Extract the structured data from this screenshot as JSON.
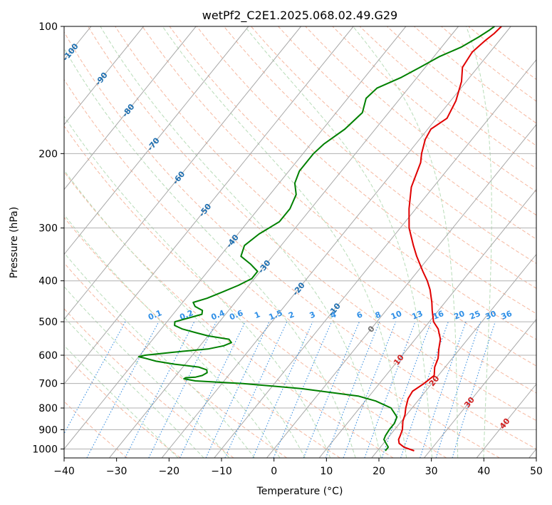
{
  "chart_data": {
    "type": "line",
    "title": "wetPf2_C2E1.2025.068.02.49.G29",
    "xlabel": "Temperature (°C)",
    "ylabel": "Pressure (hPa)",
    "xlim": [
      -40,
      50
    ],
    "ylim": [
      1050,
      100
    ],
    "y_scale": "log",
    "x_ticks": [
      -40,
      -30,
      -20,
      -10,
      0,
      10,
      20,
      30,
      40,
      50
    ],
    "x_tick_labels": [
      "−40",
      "−30",
      "−20",
      "−10",
      "0",
      "10",
      "20",
      "30",
      "40",
      "50"
    ],
    "y_ticks": [
      100,
      200,
      300,
      400,
      500,
      600,
      700,
      800,
      900,
      1000
    ],
    "y_tick_labels": [
      "100",
      "200",
      "300",
      "400",
      "500",
      "600",
      "700",
      "800",
      "900",
      "1000"
    ],
    "grid": true,
    "isotherm_labels": [
      "-100",
      "-90",
      "-80",
      "-70",
      "-60",
      "-50",
      "-40",
      "-30",
      "-20",
      "-10",
      "0",
      "10",
      "20",
      "30",
      "40"
    ],
    "isotherm_label_values": [
      -100,
      -90,
      -80,
      -70,
      -60,
      -50,
      -40,
      -30,
      -20,
      -10,
      0,
      10,
      20,
      30,
      40
    ],
    "isotherm_label_pressures": [
      115,
      133,
      158,
      190,
      228,
      272,
      322,
      370,
      418,
      468,
      520,
      615,
      690,
      775,
      870
    ],
    "mixing_ratio_labels": [
      "0.1",
      "0.2",
      "0.4",
      "0.6",
      "1",
      "1.5",
      "2",
      "3",
      "4",
      "6",
      "8",
      "10",
      "13",
      "16",
      "20",
      "25",
      "30",
      "36"
    ],
    "mixing_ratio_label_x": [
      -22.5,
      -16.5,
      -10.5,
      -7.0,
      -3.0,
      0.5,
      3.5,
      7.5,
      11.5,
      16.5,
      20.0,
      23.5,
      27.5,
      31.5,
      35.5,
      38.5,
      41.5,
      44.5
    ],
    "colors": {
      "temperature": "#e00000",
      "dewpoint": "#008000",
      "isobar": "#b0b0b0",
      "isotherm": "#a8a8a8",
      "dry_adiabat": "#f6b8a0",
      "moist_adiabat": "#b8dcb8",
      "mixing_ratio": "#3a8fe0",
      "label_cold": "#1f6fb0",
      "label_zero": "#707070",
      "label_warm": "#d02020",
      "mixing_label": "#2f8fe6",
      "frame": "#000000"
    },
    "series": [
      {
        "key": "temperature",
        "pressure": [
          1010,
          990,
          970,
          950,
          930,
          900,
          860,
          830,
          800,
          760,
          730,
          700,
          670,
          640,
          610,
          580,
          550,
          520,
          500,
          470,
          450,
          420,
          400,
          380,
          350,
          330,
          300,
          270,
          240,
          210,
          200,
          185,
          175,
          165,
          150,
          135,
          125,
          115,
          108,
          104,
          100
        ],
        "values": [
          27.0,
          24.5,
          23.0,
          22.3,
          22.0,
          21.5,
          20.3,
          19.7,
          18.8,
          17.8,
          17.5,
          18.5,
          19.2,
          18.0,
          17.3,
          16.0,
          14.8,
          12.8,
          10.8,
          8.8,
          7.5,
          5.2,
          3.3,
          1.0,
          -2.5,
          -4.8,
          -8.3,
          -11.3,
          -14.2,
          -16.2,
          -17.4,
          -18.9,
          -19.4,
          -18.0,
          -19.0,
          -20.9,
          -22.9,
          -23.4,
          -22.7,
          -22.1,
          -21.8
        ]
      },
      {
        "key": "dewpoint",
        "pressure": [
          1010,
          990,
          970,
          950,
          930,
          900,
          870,
          840,
          800,
          770,
          750,
          720,
          700,
          690,
          682,
          678,
          676,
          670,
          660,
          650,
          640,
          630,
          620,
          610,
          605,
          600,
          590,
          580,
          570,
          560,
          550,
          540,
          530,
          520,
          510,
          500,
          490,
          480,
          470,
          460,
          450,
          440,
          425,
          410,
          395,
          380,
          365,
          350,
          330,
          310,
          290,
          270,
          250,
          235,
          220,
          210,
          200,
          190,
          175,
          160,
          148,
          140,
          132,
          125,
          118,
          112,
          106,
          102,
          100
        ],
        "values": [
          21.5,
          21.5,
          20.5,
          19.5,
          19.2,
          19.0,
          19.0,
          18.5,
          16.0,
          12.0,
          8.0,
          -4.0,
          -16.0,
          -25.5,
          -28.0,
          -27.8,
          -26.0,
          -25.0,
          -24.5,
          -25.0,
          -27.0,
          -32.0,
          -36.0,
          -38.5,
          -40.0,
          -39.0,
          -34.0,
          -28.0,
          -25.5,
          -24.5,
          -25.5,
          -30.0,
          -33.0,
          -36.0,
          -38.0,
          -38.5,
          -36.5,
          -34.5,
          -35.0,
          -37.0,
          -38.0,
          -36.0,
          -34.0,
          -32.0,
          -30.5,
          -30.5,
          -33.0,
          -36.0,
          -37.0,
          -36.0,
          -34.0,
          -34.0,
          -35.0,
          -37.0,
          -38.0,
          -38.0,
          -38.0,
          -37.5,
          -35.8,
          -35.0,
          -36.5,
          -36.0,
          -33.0,
          -31.0,
          -29.0,
          -26.3,
          -24.5,
          -23.5,
          -23.1
        ]
      }
    ]
  }
}
